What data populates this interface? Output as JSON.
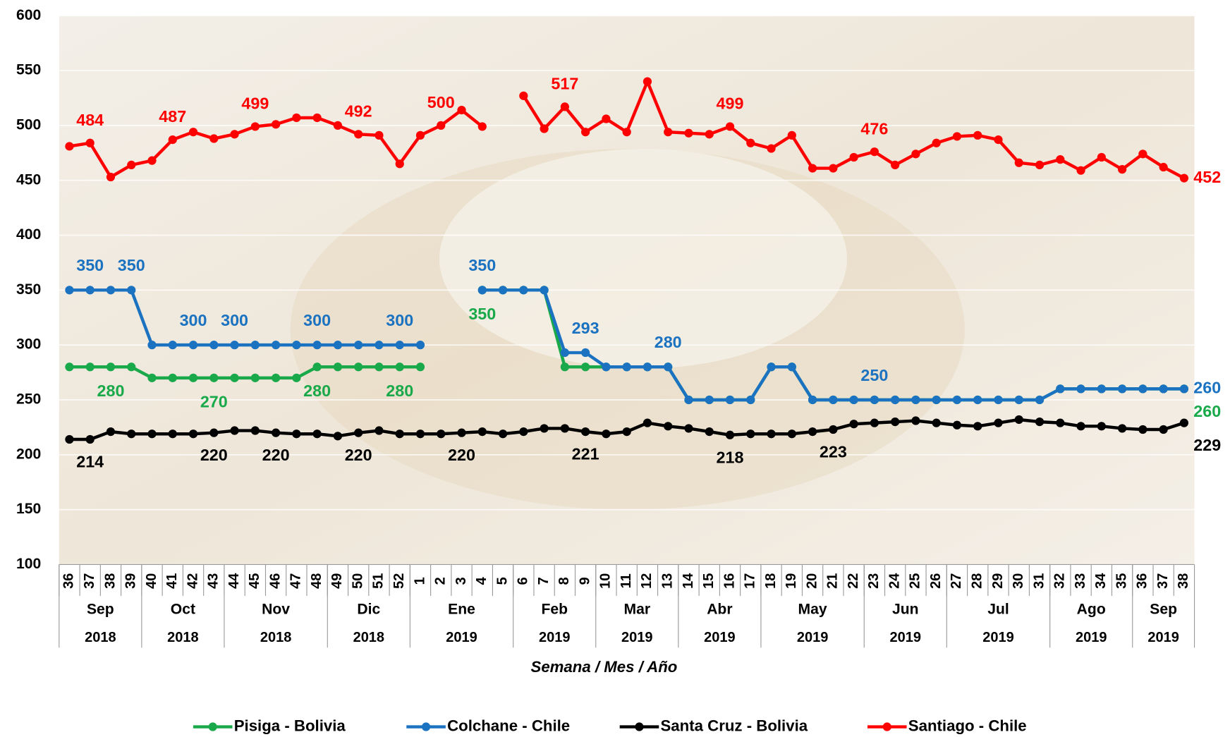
{
  "chart_data": {
    "type": "line",
    "x_axis_title": "Semana / Mes / Año",
    "categories": [
      "36",
      "37",
      "38",
      "39",
      "40",
      "41",
      "42",
      "43",
      "44",
      "45",
      "46",
      "47",
      "48",
      "49",
      "50",
      "51",
      "52",
      "1",
      "2",
      "3",
      "4",
      "5",
      "6",
      "7",
      "8",
      "9",
      "10",
      "11",
      "12",
      "13",
      "14",
      "15",
      "16",
      "17",
      "18",
      "19",
      "20",
      "21",
      "22",
      "23",
      "24",
      "25",
      "26",
      "27",
      "28",
      "29",
      "30",
      "31",
      "32",
      "33",
      "34",
      "35",
      "36",
      "37",
      "38"
    ],
    "months": [
      "Sep",
      null,
      null,
      null,
      "Oct",
      null,
      null,
      null,
      "Nov",
      null,
      null,
      null,
      null,
      "Dic",
      null,
      null,
      null,
      "Ene",
      null,
      null,
      null,
      null,
      "Feb",
      null,
      null,
      null,
      "Mar",
      null,
      null,
      null,
      "Abr",
      null,
      null,
      null,
      "May",
      null,
      null,
      null,
      null,
      "Jun",
      null,
      null,
      null,
      "Jul",
      null,
      null,
      null,
      null,
      "Ago",
      null,
      null,
      null,
      "Sep",
      null,
      null
    ],
    "years": [
      "2018",
      null,
      null,
      null,
      "2018",
      null,
      null,
      null,
      "2018",
      null,
      null,
      null,
      null,
      "2018",
      null,
      null,
      null,
      "2019",
      null,
      null,
      null,
      null,
      "2019",
      null,
      null,
      null,
      "2019",
      null,
      null,
      null,
      "2019",
      null,
      null,
      null,
      "2019",
      null,
      null,
      null,
      null,
      "2019",
      null,
      null,
      null,
      "2019",
      null,
      null,
      null,
      null,
      "2019",
      null,
      null,
      null,
      "2019",
      null,
      null
    ],
    "ylim": [
      100,
      600
    ],
    "yticks": [
      100,
      150,
      200,
      250,
      300,
      350,
      400,
      450,
      500,
      550,
      600
    ],
    "grid": true,
    "legend": "bottom",
    "series": [
      {
        "name": "Pisiga - Bolivia",
        "color": "#19a94a",
        "values": [
          280,
          280,
          280,
          280,
          270,
          270,
          270,
          270,
          270,
          270,
          270,
          270,
          280,
          280,
          280,
          280,
          280,
          280,
          null,
          null,
          350,
          350,
          350,
          350,
          280,
          280,
          280,
          280,
          280,
          280,
          250,
          250,
          250,
          250,
          280,
          280,
          250,
          250,
          250,
          250,
          250,
          250,
          250,
          250,
          250,
          250,
          250,
          250,
          260,
          260,
          260,
          260,
          260,
          260,
          260
        ],
        "value_labels": [
          null,
          null,
          "280",
          null,
          null,
          null,
          null,
          "270",
          null,
          null,
          null,
          null,
          "280",
          null,
          null,
          null,
          "280",
          null,
          null,
          null,
          "350",
          null,
          null,
          null,
          null,
          null,
          null,
          null,
          null,
          null,
          null,
          null,
          null,
          null,
          null,
          null,
          null,
          null,
          null,
          null,
          null,
          null,
          null,
          null,
          null,
          null,
          null,
          null,
          null,
          null,
          null,
          null,
          null,
          null,
          "260"
        ]
      },
      {
        "name": "Colchane - Chile",
        "color": "#1a72c0",
        "values": [
          350,
          350,
          350,
          350,
          300,
          300,
          300,
          300,
          300,
          300,
          300,
          300,
          300,
          300,
          300,
          300,
          300,
          300,
          null,
          null,
          350,
          350,
          350,
          350,
          293,
          293,
          280,
          280,
          280,
          280,
          250,
          250,
          250,
          250,
          280,
          280,
          250,
          250,
          250,
          250,
          250,
          250,
          250,
          250,
          250,
          250,
          250,
          250,
          260,
          260,
          260,
          260,
          260,
          260,
          260
        ],
        "value_labels": [
          null,
          "350",
          null,
          "350",
          null,
          null,
          "300",
          null,
          "300",
          null,
          null,
          null,
          "300",
          null,
          null,
          null,
          "300",
          null,
          null,
          null,
          "350",
          null,
          null,
          null,
          null,
          "293",
          null,
          null,
          null,
          "280",
          null,
          null,
          null,
          null,
          null,
          null,
          null,
          null,
          null,
          "250",
          null,
          null,
          null,
          null,
          null,
          null,
          null,
          null,
          null,
          null,
          null,
          null,
          null,
          null,
          "260"
        ]
      },
      {
        "name": "Santa Cruz - Bolivia",
        "color": "#000000",
        "values": [
          214,
          214,
          221,
          219,
          219,
          219,
          219,
          220,
          222,
          222,
          220,
          219,
          219,
          217,
          220,
          222,
          219,
          219,
          219,
          220,
          221,
          219,
          221,
          224,
          224,
          221,
          219,
          221,
          229,
          226,
          224,
          221,
          218,
          219,
          219,
          219,
          221,
          223,
          228,
          229,
          230,
          231,
          229,
          227,
          226,
          229,
          232,
          230,
          229,
          226,
          226,
          224,
          223,
          223,
          229
        ],
        "value_labels": [
          null,
          "214",
          null,
          null,
          null,
          null,
          null,
          "220",
          null,
          null,
          "220",
          null,
          null,
          null,
          "220",
          null,
          null,
          null,
          null,
          "220",
          null,
          null,
          null,
          null,
          null,
          "221",
          null,
          null,
          null,
          null,
          null,
          null,
          "218",
          null,
          null,
          null,
          null,
          "223",
          null,
          null,
          null,
          null,
          null,
          null,
          null,
          null,
          null,
          null,
          null,
          null,
          null,
          null,
          null,
          null,
          "229"
        ]
      },
      {
        "name": "Santiago - Chile",
        "color": "#ff0000",
        "values": [
          481,
          484,
          453,
          464,
          468,
          487,
          494,
          488,
          492,
          499,
          501,
          507,
          507,
          500,
          492,
          491,
          465,
          491,
          500,
          514,
          499,
          null,
          527,
          497,
          517,
          494,
          506,
          494,
          540,
          494,
          493,
          492,
          499,
          484,
          479,
          491,
          461,
          461,
          471,
          476,
          464,
          474,
          484,
          490,
          491,
          487,
          466,
          464,
          469,
          459,
          471,
          460,
          474,
          462,
          452
        ],
        "value_labels": [
          null,
          "484",
          null,
          null,
          null,
          "487",
          null,
          null,
          null,
          "499",
          null,
          null,
          null,
          null,
          "492",
          null,
          null,
          null,
          "500",
          null,
          null,
          null,
          null,
          null,
          "517",
          null,
          null,
          null,
          null,
          null,
          null,
          null,
          "499",
          null,
          null,
          null,
          null,
          null,
          null,
          "476",
          null,
          null,
          null,
          null,
          null,
          null,
          null,
          null,
          null,
          null,
          null,
          null,
          null,
          null,
          "452"
        ]
      }
    ]
  }
}
